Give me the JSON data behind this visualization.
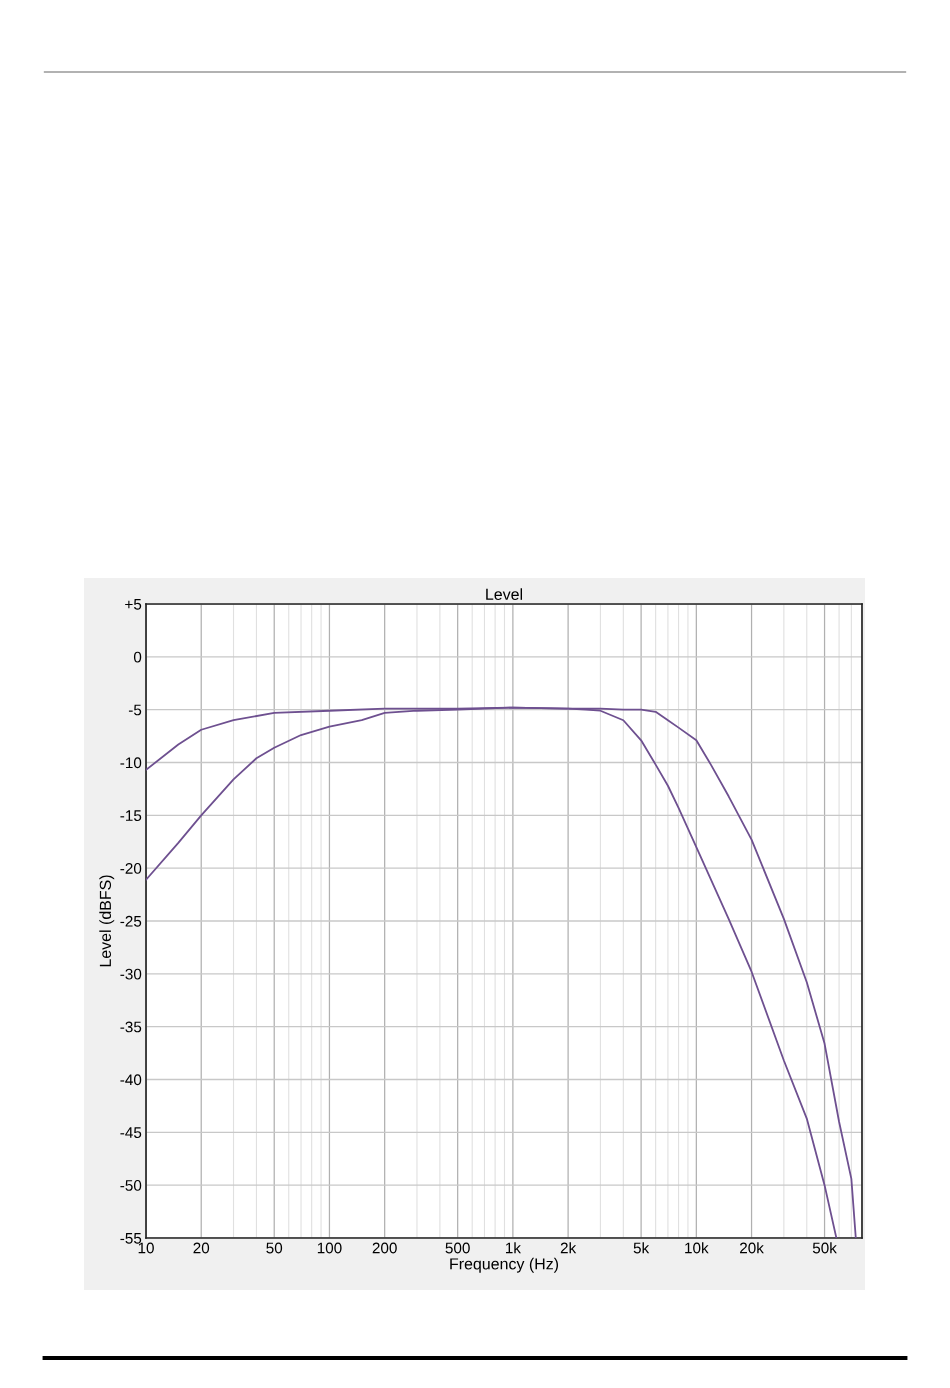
{
  "chart_data": {
    "type": "line",
    "title": "Level",
    "xlabel": "Frequency (Hz)",
    "ylabel": "Level (dBFS)",
    "log": "x",
    "grid": true,
    "marker": "none",
    "line_style": "solid",
    "xlim": [
      10,
      80000
    ],
    "xticks": [
      10,
      20,
      50,
      100,
      200,
      500,
      {
        "value": 1000,
        "label": "1k"
      },
      {
        "value": 2000,
        "label": "2k"
      },
      {
        "value": 5000,
        "label": "5k"
      },
      {
        "value": 10000,
        "label": "10k"
      },
      {
        "value": 20000,
        "label": "20k"
      },
      {
        "value": 50000,
        "label": "50k"
      }
    ],
    "ylim": [
      -55,
      5
    ],
    "yticks": [
      {
        "value": 5,
        "label": "+5"
      },
      0,
      -5,
      -10,
      -15,
      -20,
      -25,
      -30,
      -35,
      -40,
      -45,
      -50,
      -55
    ],
    "series": [
      {
        "color": "#6e5090",
        "x": [
          10,
          15,
          20,
          30,
          50,
          100,
          200,
          500,
          1000,
          2000,
          3000,
          4000,
          5000,
          6000,
          7000,
          8000,
          10000,
          12000,
          15000,
          20000,
          30000,
          40000,
          50000,
          60000,
          70000,
          74000
        ],
        "values": [
          -10.7,
          -8.3,
          -6.9,
          -6.0,
          -5.3,
          -5.1,
          -4.9,
          -4.9,
          -4.8,
          -4.9,
          -4.9,
          -5.0,
          -5.0,
          -5.2,
          -6.0,
          -6.7,
          -7.9,
          -10.2,
          -13.2,
          -17.3,
          -24.8,
          -30.8,
          -36.6,
          -44,
          -49.4,
          -55
        ]
      },
      {
        "color": "#6e5090",
        "x": [
          10,
          15,
          20,
          30,
          40,
          50,
          70,
          100,
          150,
          200,
          300,
          500,
          1000,
          2000,
          2500,
          3000,
          4000,
          5000,
          6000,
          7000,
          8000,
          10000,
          15000,
          20000,
          30000,
          40000,
          50000,
          58000
        ],
        "values": [
          -21.1,
          -17.6,
          -15,
          -11.6,
          -9.6,
          -8.6,
          -7.4,
          -6.6,
          -6.0,
          -5.3,
          -5.1,
          -5.0,
          -4.8,
          -4.9,
          -5.0,
          -5.1,
          -6.0,
          -7.9,
          -10.2,
          -12.2,
          -14.3,
          -18,
          -24.8,
          -29.8,
          -38.2,
          -43.7,
          -50,
          -55
        ]
      }
    ]
  }
}
